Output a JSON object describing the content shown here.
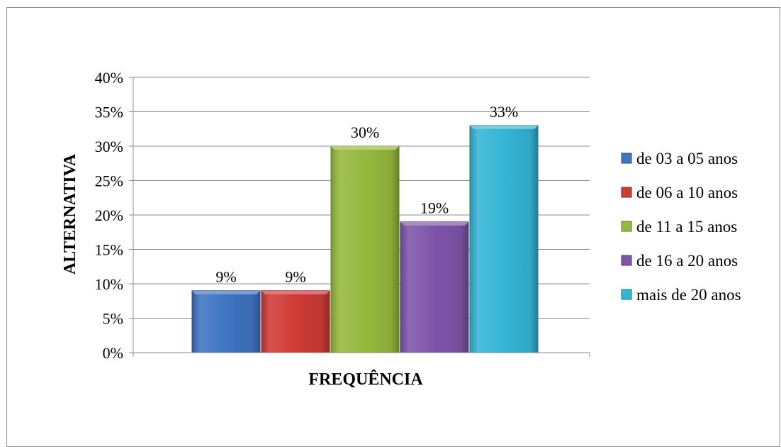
{
  "chart_data": {
    "type": "bar",
    "categories": [
      "FREQUÊNCIA"
    ],
    "xlabel": "FREQUÊNCIA",
    "ylabel": "ALTERNATIVA",
    "ylim": [
      0,
      0.4
    ],
    "yticks": [
      "0%",
      "5%",
      "10%",
      "15%",
      "20%",
      "25%",
      "30%",
      "35%",
      "40%"
    ],
    "grid": true,
    "legend_position": "right",
    "series": [
      {
        "name": "de 03 a 05 anos",
        "values": [
          0.09
        ],
        "label": "9%",
        "color": "#3f74c2"
      },
      {
        "name": "de 06 a 10 anos",
        "values": [
          0.09
        ],
        "label": "9%",
        "color": "#cf3a36"
      },
      {
        "name": "de 11 a 15 anos",
        "values": [
          0.3
        ],
        "label": "30%",
        "color": "#95b93e"
      },
      {
        "name": "de 16 a 20 anos",
        "values": [
          0.19
        ],
        "label": "19%",
        "color": "#7e55a9"
      },
      {
        "name": "mais de 20 anos",
        "values": [
          0.33
        ],
        "label": "33%",
        "color": "#34b5d6"
      }
    ]
  }
}
